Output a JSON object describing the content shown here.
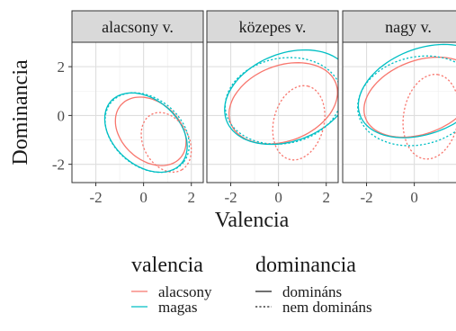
{
  "chart_data": {
    "type": "scatter",
    "subtype": "confidence-ellipses",
    "facet_variable_label_suffix": "v.",
    "panels": [
      {
        "title": "alacsony v.",
        "ellipses": [
          {
            "valencia": "alacsony",
            "dominancia": "domináns",
            "center": [
              0.3,
              -0.65
            ],
            "semi_axes": [
              1.65,
              1.2
            ],
            "angle_deg": -40
          },
          {
            "valencia": "magas",
            "dominancia": "domináns",
            "center": [
              0.1,
              -0.7
            ],
            "semi_axes": [
              1.95,
              1.35
            ],
            "angle_deg": -40
          },
          {
            "valencia": "alacsony",
            "dominancia": "nem domináns",
            "center": [
              0.95,
              -1.1
            ],
            "semi_axes": [
              1.3,
              0.95
            ],
            "angle_deg": -60
          },
          {
            "valencia": "magas",
            "dominancia": "nem domináns",
            "center": [
              0.15,
              -0.7
            ],
            "semi_axes": [
              1.95,
              1.4
            ],
            "angle_deg": -38
          }
        ]
      },
      {
        "title": "közepes v.",
        "ellipses": [
          {
            "valencia": "alacsony",
            "dominancia": "domináns",
            "center": [
              0.2,
              0.5
            ],
            "semi_axes": [
              2.35,
              1.55
            ],
            "angle_deg": 20
          },
          {
            "valencia": "magas",
            "dominancia": "domináns",
            "center": [
              0.4,
              0.75
            ],
            "semi_axes": [
              2.75,
              1.8
            ],
            "angle_deg": 20
          },
          {
            "valencia": "alacsony",
            "dominancia": "nem domináns",
            "center": [
              0.85,
              -0.3
            ],
            "semi_axes": [
              1.55,
              1.05
            ],
            "angle_deg": 75
          },
          {
            "valencia": "magas",
            "dominancia": "nem domináns",
            "center": [
              0.2,
              0.6
            ],
            "semi_axes": [
              2.45,
              1.75
            ],
            "angle_deg": 10
          }
        ]
      },
      {
        "title": "nagy v.",
        "ellipses": [
          {
            "valencia": "alacsony",
            "dominancia": "domináns",
            "center": [
              0.25,
              0.75
            ],
            "semi_axes": [
              2.45,
              1.5
            ],
            "angle_deg": 20
          },
          {
            "valencia": "magas",
            "dominancia": "domináns",
            "center": [
              0.4,
              1.0
            ],
            "semi_axes": [
              2.85,
              1.75
            ],
            "angle_deg": 20
          },
          {
            "valencia": "alacsony",
            "dominancia": "nem domináns",
            "center": [
              0.7,
              -0.05
            ],
            "semi_axes": [
              1.75,
              1.15
            ],
            "angle_deg": 80
          },
          {
            "valencia": "magas",
            "dominancia": "nem domináns",
            "center": [
              0.15,
              0.6
            ],
            "semi_axes": [
              2.55,
              1.8
            ],
            "angle_deg": 12
          }
        ]
      }
    ],
    "xlabel": "Valencia",
    "ylabel": "Dominancia",
    "xlim": [
      -3.0,
      2.5
    ],
    "ylim": [
      -2.75,
      3.0
    ],
    "xticks": [
      -2,
      0,
      2
    ],
    "yticks": [
      -2,
      0,
      2
    ],
    "grid": true,
    "legend_position": "bottom",
    "legends": [
      {
        "title": "valencia",
        "aesthetic": "color",
        "entries": [
          {
            "label": "alacsony",
            "color": "#F8766D"
          },
          {
            "label": "magas",
            "color": "#00BFC4"
          }
        ]
      },
      {
        "title": "dominancia",
        "aesthetic": "linetype",
        "entries": [
          {
            "label": "domináns",
            "linetype": "solid"
          },
          {
            "label": "nem domináns",
            "linetype": "dotted"
          }
        ]
      }
    ],
    "colors": {
      "alacsony": "#F8766D",
      "magas": "#00BFC4"
    }
  }
}
